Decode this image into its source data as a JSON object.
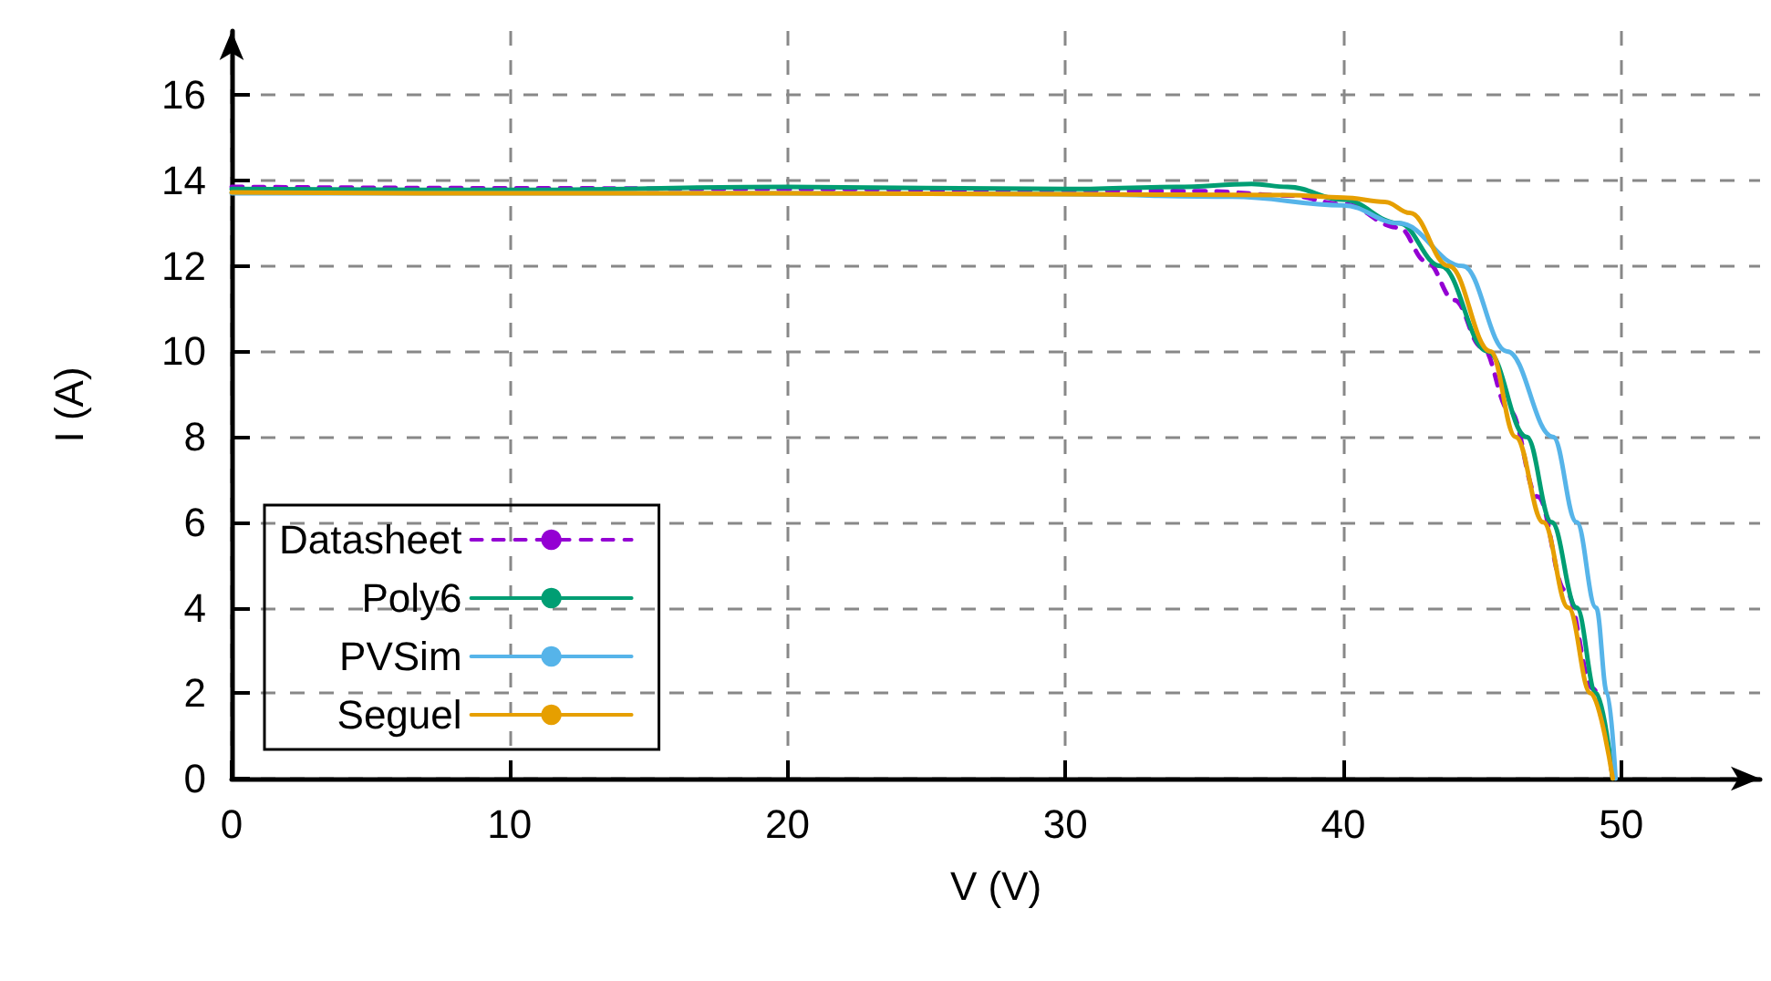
{
  "chart_data": {
    "type": "line",
    "xlabel": "V (V)",
    "ylabel": "I (A)",
    "xlim": [
      0,
      55
    ],
    "ylim": [
      0,
      17.5
    ],
    "xticks": [
      0,
      10,
      20,
      30,
      40,
      50
    ],
    "yticks": [
      0,
      2,
      4,
      6,
      8,
      10,
      12,
      14,
      16
    ],
    "grid": true,
    "legend": "bottom left",
    "marker": "none",
    "series": [
      {
        "name": "Datasheet",
        "color": "#9400d3",
        "line_style": "dashed",
        "x": [
          0,
          10,
          20,
          30,
          35,
          38,
          40,
          42,
          43,
          44,
          45,
          46,
          47,
          48,
          49,
          49.7
        ],
        "values": [
          13.85,
          13.82,
          13.8,
          13.77,
          13.75,
          13.65,
          13.45,
          12.9,
          12.1,
          11.2,
          10.1,
          8.6,
          6.6,
          4.4,
          2.1,
          0
        ]
      },
      {
        "name": "Poly6",
        "color": "#009e73",
        "line_style": "solid",
        "x": [
          0,
          10,
          20,
          30,
          34,
          36.7,
          38,
          40,
          42,
          43.5,
          45.2,
          46.6,
          47.5,
          48.4,
          49.1,
          49.7
        ],
        "values": [
          13.8,
          13.78,
          13.85,
          13.8,
          13.85,
          13.92,
          13.85,
          13.55,
          13.0,
          12.0,
          10.0,
          8.0,
          6.0,
          4.0,
          2.0,
          0
        ]
      },
      {
        "name": "PVSim",
        "color": "#56b4e9",
        "line_style": "solid",
        "x": [
          0,
          10,
          20,
          30,
          36,
          40,
          42,
          44.3,
          45.9,
          47.55,
          48.4,
          49.1,
          49.5,
          49.8
        ],
        "values": [
          13.7,
          13.7,
          13.7,
          13.68,
          13.62,
          13.42,
          13.0,
          12.0,
          10.0,
          8.0,
          6.0,
          4.0,
          2.0,
          0
        ]
      },
      {
        "name": "Seguel",
        "color": "#e69f00",
        "line_style": "solid",
        "x": [
          0,
          10,
          20,
          30,
          38,
          40,
          41.5,
          42.4,
          43.8,
          45.3,
          46.2,
          47.2,
          48.1,
          48.9,
          49.7
        ],
        "values": [
          13.72,
          13.7,
          13.7,
          13.68,
          13.66,
          13.6,
          13.5,
          13.24,
          12.0,
          10.0,
          8.0,
          6.0,
          4.0,
          2.0,
          0
        ]
      }
    ]
  }
}
